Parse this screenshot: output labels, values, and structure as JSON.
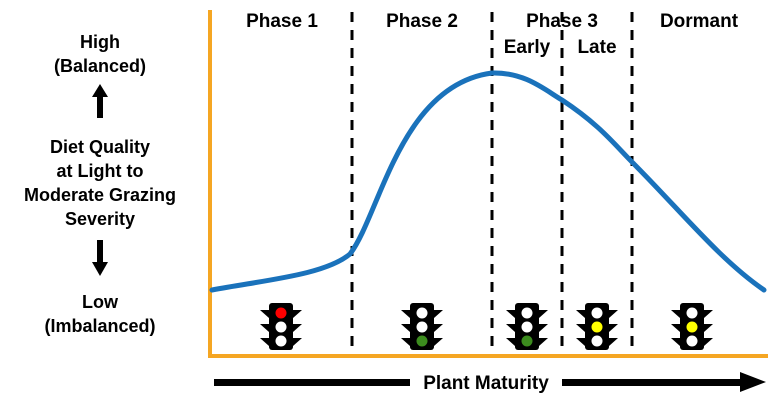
{
  "y_axis": {
    "top_label_line1": "High",
    "top_label_line2": "(Balanced)",
    "title_line1": "Diet Quality",
    "title_line2": "at Light to",
    "title_line3": "Moderate Grazing",
    "title_line4": "Severity",
    "bottom_label_line1": "Low",
    "bottom_label_line2": "(Imbalanced)"
  },
  "x_axis": {
    "label": "Plant Maturity"
  },
  "phases": [
    {
      "id": "phase1",
      "label": "Phase 1"
    },
    {
      "id": "phase2",
      "label": "Phase 2"
    },
    {
      "id": "phase3",
      "label": "Phase 3"
    },
    {
      "id": "dormant",
      "label": "Dormant"
    }
  ],
  "subphases": [
    {
      "id": "early",
      "label": "Early"
    },
    {
      "id": "late",
      "label": "Late"
    }
  ],
  "traffic_lights": [
    {
      "segment": "Phase 1",
      "lit": "red"
    },
    {
      "segment": "Phase 2",
      "lit": "green"
    },
    {
      "segment": "Early",
      "lit": "green"
    },
    {
      "segment": "Late",
      "lit": "yellow"
    },
    {
      "segment": "Dormant",
      "lit": "yellow"
    }
  ],
  "colors": {
    "axis": "#F5A623",
    "curve": "#1A72BB",
    "red": "#FF0000",
    "yellow": "#FFFF00",
    "green": "#3C8C1E",
    "unlit": "#FFFFFF",
    "housing": "#000000"
  }
}
